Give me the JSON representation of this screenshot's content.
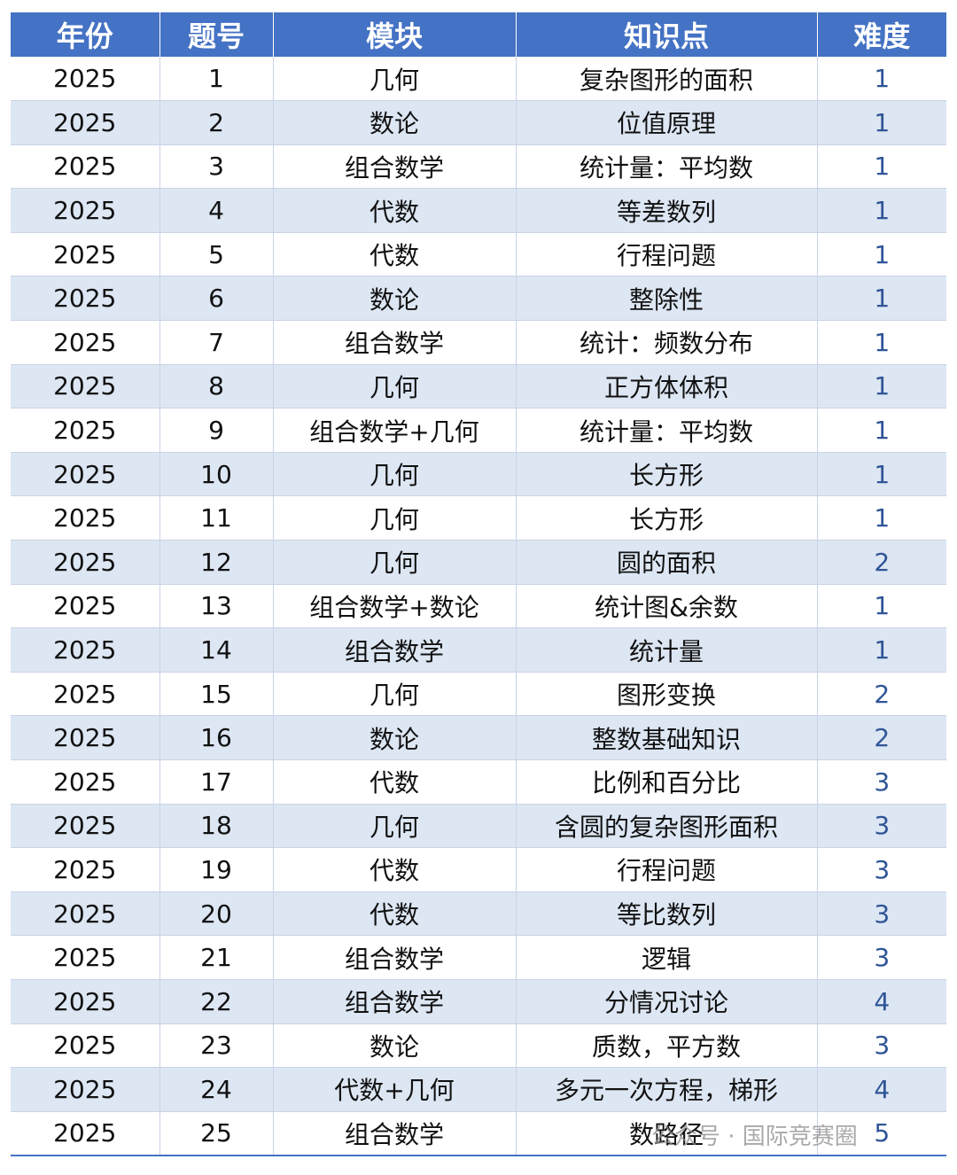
{
  "table": {
    "headers": [
      "年份",
      "题号",
      "模块",
      "知识点",
      "难度"
    ],
    "rows": [
      [
        "2025",
        "1",
        "几何",
        "复杂图形的面积",
        "1"
      ],
      [
        "2025",
        "2",
        "数论",
        "位值原理",
        "1"
      ],
      [
        "2025",
        "3",
        "组合数学",
        "统计量：平均数",
        "1"
      ],
      [
        "2025",
        "4",
        "代数",
        "等差数列",
        "1"
      ],
      [
        "2025",
        "5",
        "代数",
        "行程问题",
        "1"
      ],
      [
        "2025",
        "6",
        "数论",
        "整除性",
        "1"
      ],
      [
        "2025",
        "7",
        "组合数学",
        "统计：频数分布",
        "1"
      ],
      [
        "2025",
        "8",
        "几何",
        "正方体体积",
        "1"
      ],
      [
        "2025",
        "9",
        "组合数学+几何",
        "统计量：平均数",
        "1"
      ],
      [
        "2025",
        "10",
        "几何",
        "长方形",
        "1"
      ],
      [
        "2025",
        "11",
        "几何",
        "长方形",
        "1"
      ],
      [
        "2025",
        "12",
        "几何",
        "圆的面积",
        "2"
      ],
      [
        "2025",
        "13",
        "组合数学+数论",
        "统计图&余数",
        "1"
      ],
      [
        "2025",
        "14",
        "组合数学",
        "统计量",
        "1"
      ],
      [
        "2025",
        "15",
        "几何",
        "图形变换",
        "2"
      ],
      [
        "2025",
        "16",
        "数论",
        "整数基础知识",
        "2"
      ],
      [
        "2025",
        "17",
        "代数",
        "比例和百分比",
        "3"
      ],
      [
        "2025",
        "18",
        "几何",
        "含圆的复杂图形面积",
        "3"
      ],
      [
        "2025",
        "19",
        "代数",
        "行程问题",
        "3"
      ],
      [
        "2025",
        "20",
        "代数",
        "等比数列",
        "3"
      ],
      [
        "2025",
        "21",
        "组合数学",
        "逻辑",
        "3"
      ],
      [
        "2025",
        "22",
        "组合数学",
        "分情况讨论",
        "4"
      ],
      [
        "2025",
        "23",
        "数论",
        "质数，平方数",
        "3"
      ],
      [
        "2025",
        "24",
        "代数+几何",
        "多元一次方程，梯形",
        "4"
      ],
      [
        "2025",
        "25",
        "组合数学",
        "数路径",
        "5"
      ]
    ]
  },
  "watermark": {
    "text": "公众号 · 国际竞赛圈"
  }
}
